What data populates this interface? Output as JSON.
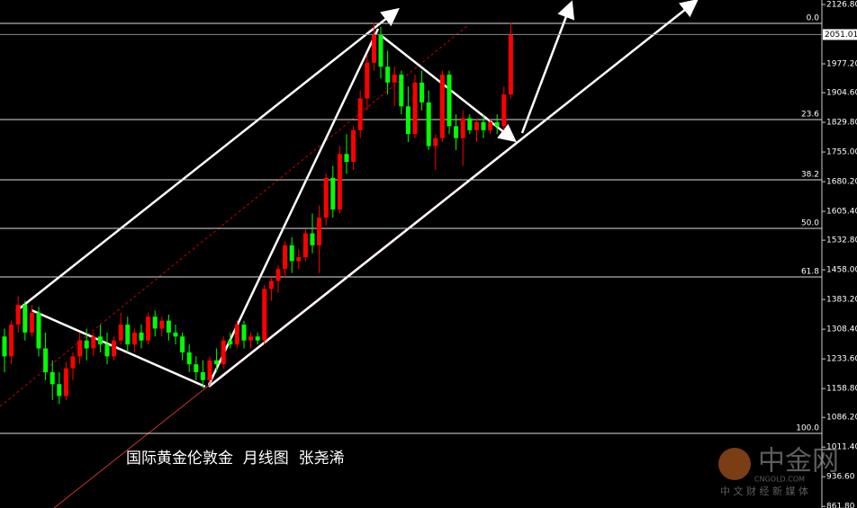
{
  "chart_data": {
    "type": "candlestick",
    "title": "国际黄金伦敦金  月线图  张尧浠",
    "up_color": "#ff0000",
    "down_color": "#00ff00",
    "ylim": [
      857.8,
      2138.1
    ],
    "yticks": [
      {
        "value": 2126.8,
        "label": "2126.80"
      },
      {
        "value": 1977.2,
        "label": "1977.20"
      },
      {
        "value": 1904.6,
        "label": "1904.60"
      },
      {
        "value": 1829.8,
        "label": "1829.80"
      },
      {
        "value": 1755.0,
        "label": "1755.00"
      },
      {
        "value": 1680.2,
        "label": "1680.20"
      },
      {
        "value": 1605.4,
        "label": "1605.40"
      },
      {
        "value": 1532.8,
        "label": "1532.80"
      },
      {
        "value": 1458.0,
        "label": "1458.00"
      },
      {
        "value": 1383.2,
        "label": "1383.20"
      },
      {
        "value": 1308.4,
        "label": "1308.40"
      },
      {
        "value": 1233.6,
        "label": "1233.60"
      },
      {
        "value": 1158.8,
        "label": "1158.80"
      },
      {
        "value": 1086.2,
        "label": "1086.20"
      },
      {
        "value": 1011.4,
        "label": "1011.40"
      },
      {
        "value": 936.6,
        "label": "936.60"
      },
      {
        "value": 861.8,
        "label": "861.80"
      }
    ],
    "last_price": 2051.01,
    "levels": [
      {
        "value": 2079.2,
        "label": "0.0"
      },
      {
        "value": 1836.7,
        "label": "23.6"
      },
      {
        "value": 1685.0,
        "label": "38.2"
      },
      {
        "value": 1562.5,
        "label": "50.0"
      },
      {
        "value": 1440.2,
        "label": "61.8"
      },
      {
        "value": 1046.0,
        "label": "100.0"
      }
    ],
    "watermark": {
      "brand": "中金网",
      "site": "CNGOLD.COM",
      "slogan": "中 文 财 经 新 媒 体"
    },
    "candles": [
      {
        "open": 1290,
        "high": 1310,
        "low": 1200,
        "close": 1240
      },
      {
        "open": 1240,
        "high": 1330,
        "low": 1220,
        "close": 1320
      },
      {
        "open": 1320,
        "high": 1392,
        "low": 1300,
        "close": 1370
      },
      {
        "open": 1370,
        "high": 1380,
        "low": 1280,
        "close": 1300
      },
      {
        "open": 1300,
        "high": 1370,
        "low": 1290,
        "close": 1350
      },
      {
        "open": 1350,
        "high": 1365,
        "low": 1240,
        "close": 1260
      },
      {
        "open": 1260,
        "high": 1300,
        "low": 1180,
        "close": 1200
      },
      {
        "open": 1200,
        "high": 1230,
        "low": 1130,
        "close": 1170
      },
      {
        "open": 1170,
        "high": 1200,
        "low": 1120,
        "close": 1140
      },
      {
        "open": 1140,
        "high": 1225,
        "low": 1130,
        "close": 1210
      },
      {
        "open": 1210,
        "high": 1250,
        "low": 1180,
        "close": 1240
      },
      {
        "open": 1240,
        "high": 1300,
        "low": 1220,
        "close": 1280
      },
      {
        "open": 1280,
        "high": 1310,
        "low": 1230,
        "close": 1260
      },
      {
        "open": 1260,
        "high": 1300,
        "low": 1240,
        "close": 1290
      },
      {
        "open": 1290,
        "high": 1320,
        "low": 1250,
        "close": 1270
      },
      {
        "open": 1270,
        "high": 1300,
        "low": 1220,
        "close": 1240
      },
      {
        "open": 1240,
        "high": 1290,
        "low": 1230,
        "close": 1280
      },
      {
        "open": 1280,
        "high": 1350,
        "low": 1270,
        "close": 1320
      },
      {
        "open": 1320,
        "high": 1340,
        "low": 1250,
        "close": 1270
      },
      {
        "open": 1270,
        "high": 1310,
        "low": 1250,
        "close": 1300
      },
      {
        "open": 1300,
        "high": 1320,
        "low": 1260,
        "close": 1280
      },
      {
        "open": 1280,
        "high": 1350,
        "low": 1270,
        "close": 1340
      },
      {
        "open": 1340,
        "high": 1355,
        "low": 1290,
        "close": 1310
      },
      {
        "open": 1310,
        "high": 1340,
        "low": 1290,
        "close": 1330
      },
      {
        "open": 1330,
        "high": 1345,
        "low": 1280,
        "close": 1300
      },
      {
        "open": 1300,
        "high": 1320,
        "low": 1270,
        "close": 1290
      },
      {
        "open": 1290,
        "high": 1300,
        "low": 1230,
        "close": 1250
      },
      {
        "open": 1250,
        "high": 1270,
        "low": 1200,
        "close": 1220
      },
      {
        "open": 1220,
        "high": 1240,
        "low": 1180,
        "close": 1200
      },
      {
        "open": 1200,
        "high": 1230,
        "low": 1160,
        "close": 1180
      },
      {
        "open": 1180,
        "high": 1240,
        "low": 1165,
        "close": 1230
      },
      {
        "open": 1230,
        "high": 1260,
        "low": 1200,
        "close": 1220
      },
      {
        "open": 1220,
        "high": 1290,
        "low": 1210,
        "close": 1280
      },
      {
        "open": 1280,
        "high": 1300,
        "low": 1260,
        "close": 1270
      },
      {
        "open": 1270,
        "high": 1330,
        "low": 1260,
        "close": 1320
      },
      {
        "open": 1320,
        "high": 1330,
        "low": 1260,
        "close": 1280
      },
      {
        "open": 1280,
        "high": 1300,
        "low": 1260,
        "close": 1290
      },
      {
        "open": 1290,
        "high": 1300,
        "low": 1270,
        "close": 1280
      },
      {
        "open": 1280,
        "high": 1420,
        "low": 1270,
        "close": 1410
      },
      {
        "open": 1410,
        "high": 1440,
        "low": 1380,
        "close": 1430
      },
      {
        "open": 1430,
        "high": 1470,
        "low": 1400,
        "close": 1460
      },
      {
        "open": 1460,
        "high": 1530,
        "low": 1440,
        "close": 1520
      },
      {
        "open": 1520,
        "high": 1540,
        "low": 1450,
        "close": 1480
      },
      {
        "open": 1480,
        "high": 1510,
        "low": 1460,
        "close": 1490
      },
      {
        "open": 1490,
        "high": 1560,
        "low": 1480,
        "close": 1550
      },
      {
        "open": 1550,
        "high": 1600,
        "low": 1500,
        "close": 1520
      },
      {
        "open": 1520,
        "high": 1620,
        "low": 1450,
        "close": 1590
      },
      {
        "open": 1590,
        "high": 1700,
        "low": 1570,
        "close": 1690
      },
      {
        "open": 1690,
        "high": 1720,
        "low": 1590,
        "close": 1610
      },
      {
        "open": 1610,
        "high": 1770,
        "low": 1600,
        "close": 1750
      },
      {
        "open": 1750,
        "high": 1800,
        "low": 1700,
        "close": 1730
      },
      {
        "open": 1730,
        "high": 1820,
        "low": 1710,
        "close": 1810
      },
      {
        "open": 1810,
        "high": 1910,
        "low": 1790,
        "close": 1890
      },
      {
        "open": 1890,
        "high": 2000,
        "low": 1860,
        "close": 1980
      },
      {
        "open": 1980,
        "high": 2080,
        "low": 1960,
        "close": 2050
      },
      {
        "open": 2050,
        "high": 2070,
        "low": 1940,
        "close": 1970
      },
      {
        "open": 1970,
        "high": 2010,
        "low": 1900,
        "close": 1930
      },
      {
        "open": 1930,
        "high": 1970,
        "low": 1870,
        "close": 1950
      },
      {
        "open": 1950,
        "high": 1960,
        "low": 1850,
        "close": 1870
      },
      {
        "open": 1870,
        "high": 1920,
        "low": 1780,
        "close": 1800
      },
      {
        "open": 1800,
        "high": 1950,
        "low": 1790,
        "close": 1930
      },
      {
        "open": 1930,
        "high": 1960,
        "low": 1860,
        "close": 1880
      },
      {
        "open": 1880,
        "high": 1910,
        "low": 1760,
        "close": 1770
      },
      {
        "open": 1770,
        "high": 1800,
        "low": 1710,
        "close": 1790
      },
      {
        "open": 1790,
        "high": 1960,
        "low": 1780,
        "close": 1950
      },
      {
        "open": 1950,
        "high": 1960,
        "low": 1800,
        "close": 1820
      },
      {
        "open": 1820,
        "high": 1850,
        "low": 1760,
        "close": 1790
      },
      {
        "open": 1790,
        "high": 1860,
        "low": 1720,
        "close": 1840
      },
      {
        "open": 1840,
        "high": 1850,
        "low": 1800,
        "close": 1810
      },
      {
        "open": 1810,
        "high": 1840,
        "low": 1780,
        "close": 1830
      },
      {
        "open": 1830,
        "high": 1850,
        "low": 1790,
        "close": 1810
      },
      {
        "open": 1810,
        "high": 1840,
        "low": 1800,
        "close": 1830
      },
      {
        "open": 1830,
        "high": 1850,
        "low": 1800,
        "close": 1820
      },
      {
        "open": 1820,
        "high": 1920,
        "low": 1810,
        "close": 1900
      },
      {
        "open": 1900,
        "high": 2080,
        "low": 1890,
        "close": 2050
      }
    ]
  }
}
